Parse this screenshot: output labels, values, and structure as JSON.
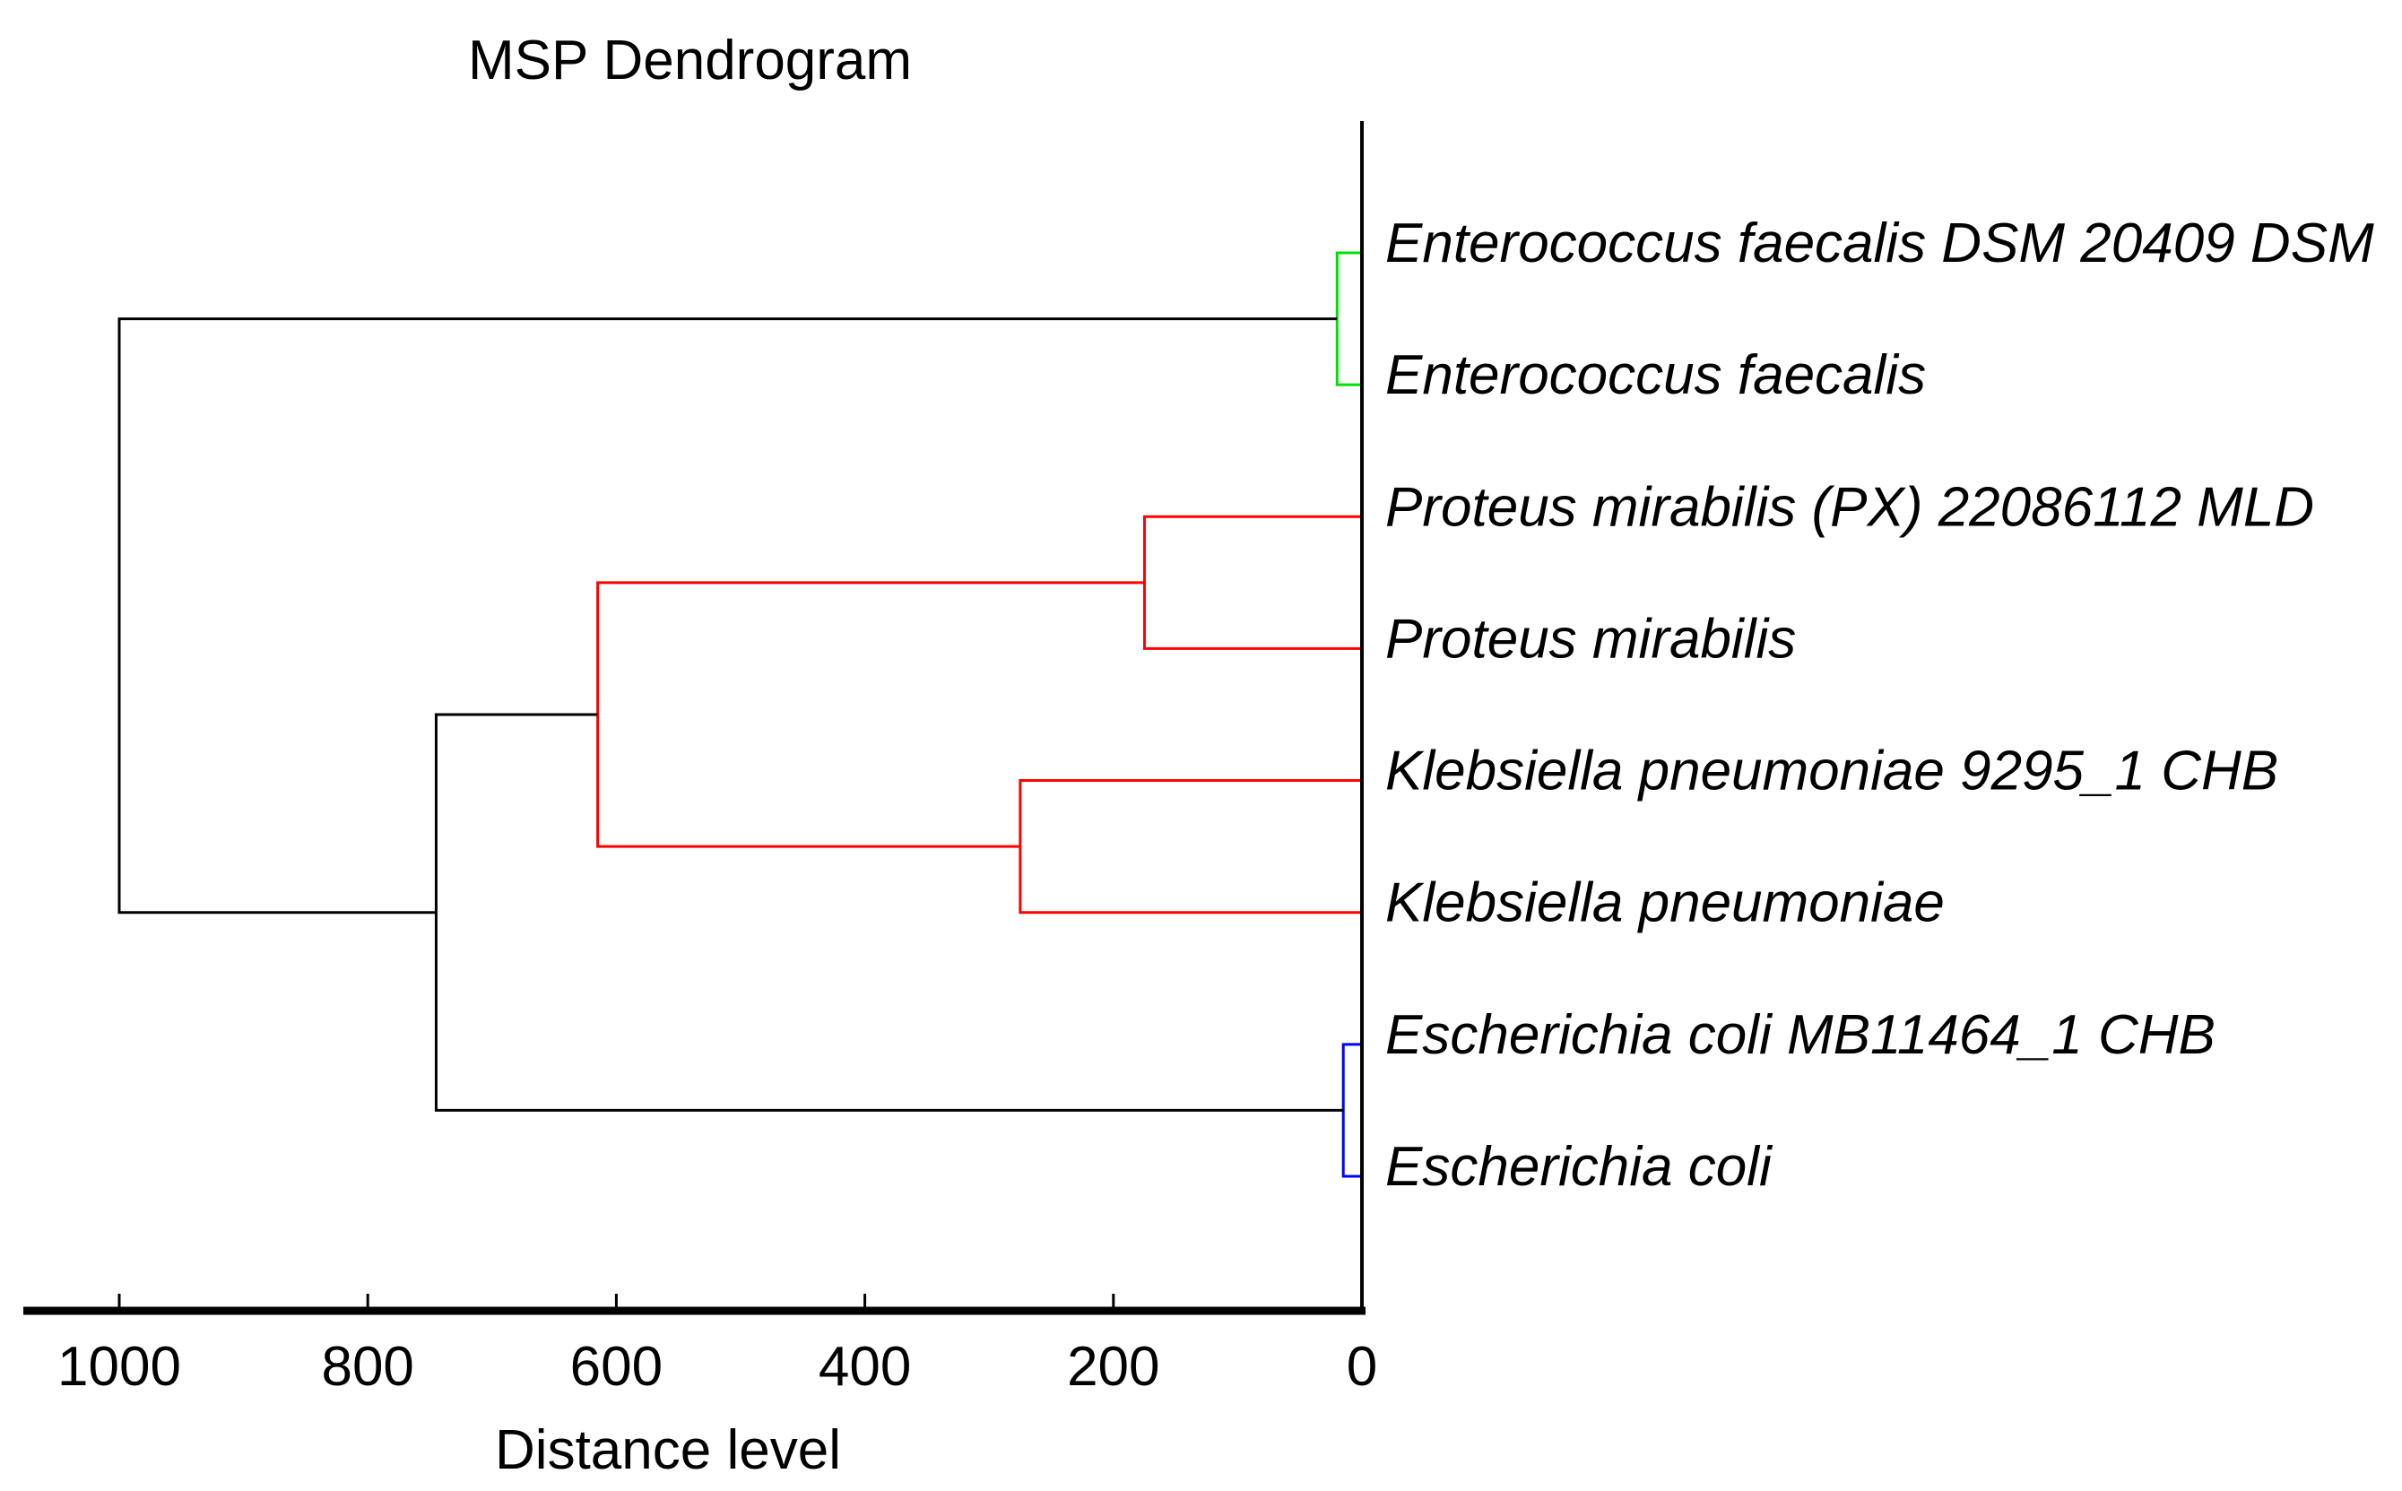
{
  "chart_data": {
    "type": "dendrogram",
    "title": "MSP Dendrogram",
    "xlabel": "Distance level",
    "orientation": "horizontal; leaves on the right, distance increasing to the left",
    "x_axis": {
      "ticks": [
        1000,
        800,
        600,
        400,
        200,
        0
      ],
      "range": [
        0,
        1000
      ],
      "zero_side": "right"
    },
    "leaves": [
      "Enterococcus faecalis DSM 20409 DSM",
      "Enterococcus faecalis",
      "Proteus mirabilis (PX) 22086112 MLD",
      "Proteus mirabilis",
      "Klebsiella pneumoniae 9295_1 CHB",
      "Klebsiella pneumoniae",
      "Escherichia coli MB11464_1 CHB",
      "Escherichia coli"
    ],
    "leaf_label_style": "italic",
    "merges": [
      {
        "id": "enterococcus_pair",
        "children": [
          0,
          1
        ],
        "distance": 20,
        "color": "#00e000"
      },
      {
        "id": "proteus_pair",
        "children": [
          2,
          3
        ],
        "distance": 175,
        "color": "#ff0000"
      },
      {
        "id": "klebsiella_pair",
        "children": [
          4,
          5
        ],
        "distance": 275,
        "color": "#ff0000"
      },
      {
        "id": "proteus_klebsiella",
        "children": [
          "proteus_pair",
          "klebsiella_pair"
        ],
        "distance": 615,
        "color": "#ff0000"
      },
      {
        "id": "ecoli_pair",
        "children": [
          6,
          7
        ],
        "distance": 15,
        "color": "#0000ff"
      },
      {
        "id": "enterobacteria",
        "children": [
          "proteus_klebsiella",
          "ecoli_pair"
        ],
        "distance": 745,
        "color": "#000000"
      },
      {
        "id": "root",
        "children": [
          "enterococcus_pair",
          "enterobacteria"
        ],
        "distance": 1000,
        "color": "#000000"
      }
    ],
    "colors": {
      "enterococcus_cluster": "#00e000",
      "proteus_klebsiella_cluster": "#ff0000",
      "ecoli_cluster": "#0000ff",
      "links_and_axis": "#000000",
      "text": "#000000",
      "background": "#ffffff"
    }
  }
}
